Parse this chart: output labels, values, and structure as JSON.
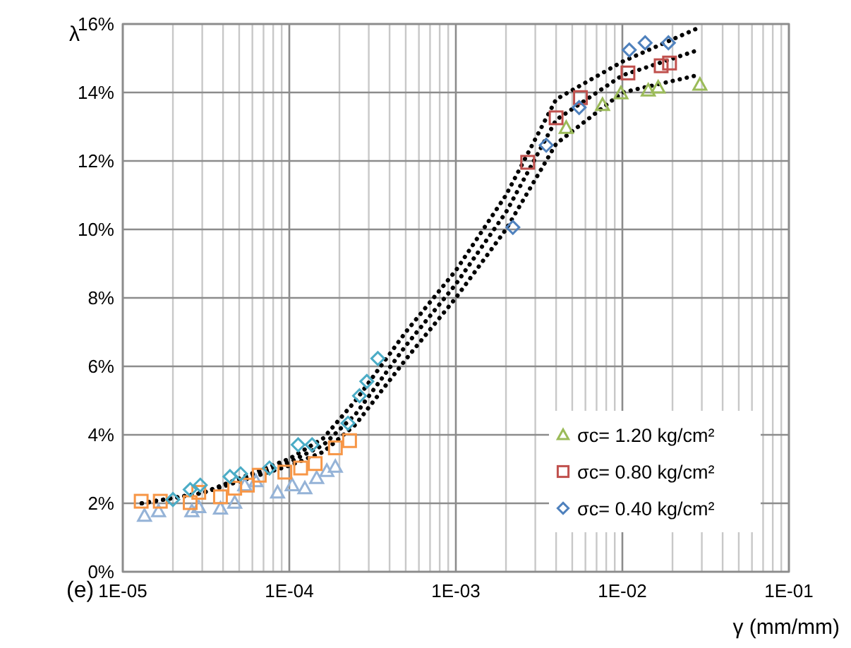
{
  "chart_data": {
    "type": "scatter",
    "ylabel": "λ",
    "xlabel": "γ (mm/mm)",
    "annotations": [
      "(e)"
    ],
    "log": "x",
    "grid": true,
    "legend": "bottom right",
    "xlim": [
      1e-05,
      0.1
    ],
    "xticks": [
      {
        "value": 1e-05,
        "label": "1E-05"
      },
      {
        "value": 0.0001,
        "label": "1E-04"
      },
      {
        "value": 0.001,
        "label": "1E-03"
      },
      {
        "value": 0.01,
        "label": "1E-02"
      },
      {
        "value": 0.1,
        "label": "1E-01"
      }
    ],
    "ylim": [
      0,
      16
    ],
    "yticks": [
      {
        "value": 0,
        "label": "0%"
      },
      {
        "value": 2,
        "label": "2%"
      },
      {
        "value": 4,
        "label": "4%"
      },
      {
        "value": 6,
        "label": "6%"
      },
      {
        "value": 8,
        "label": "8%"
      },
      {
        "value": 10,
        "label": "10%"
      },
      {
        "value": 12,
        "label": "12%"
      },
      {
        "value": 14,
        "label": "14%"
      },
      {
        "value": 16,
        "label": "16%"
      }
    ],
    "series": [
      {
        "type": "line",
        "line_style": "dotted",
        "marker": "none",
        "color": "#000000",
        "x": [
          1.3e-05,
          3e-05,
          0.0001,
          0.00016,
          0.00025,
          0.0005,
          0.001,
          0.002,
          0.004,
          0.01,
          0.029
        ],
        "values": [
          2.0,
          2.3,
          3.3,
          3.9,
          5.0,
          7.0,
          8.8,
          11.0,
          13.8,
          14.9,
          15.9
        ]
      },
      {
        "type": "line",
        "line_style": "dotted",
        "marker": "none",
        "color": "#000000",
        "x": [
          1.3e-05,
          3e-05,
          0.0001,
          0.00016,
          0.00025,
          0.0005,
          0.001,
          0.002,
          0.004,
          0.01,
          0.027
        ],
        "values": [
          2.0,
          2.3,
          3.2,
          3.7,
          4.6,
          6.6,
          8.4,
          10.5,
          13.2,
          14.5,
          15.2
        ]
      },
      {
        "type": "line",
        "line_style": "dotted",
        "marker": "none",
        "color": "#000000",
        "x": [
          1.3e-05,
          3e-05,
          0.0001,
          0.00016,
          0.00025,
          0.0005,
          0.001,
          0.002,
          0.004,
          0.01,
          0.028
        ],
        "values": [
          2.0,
          2.3,
          3.1,
          3.5,
          4.3,
          6.2,
          8.0,
          10.0,
          12.5,
          14.0,
          14.5
        ]
      },
      {
        "marker": "triangle",
        "color": "#95b3d7",
        "x": [
          1.35e-05,
          1.64e-05,
          2.6e-05,
          2.86e-05,
          3.86e-05,
          4.7e-05,
          5.4e-05,
          6.3e-05,
          8.5e-05,
          0.000104,
          0.000124,
          0.000146,
          0.000168,
          0.000189
        ],
        "values": [
          1.64,
          1.77,
          1.77,
          1.89,
          1.85,
          2.02,
          2.53,
          2.65,
          2.32,
          2.53,
          2.44,
          2.74,
          2.95,
          3.07
        ]
      },
      {
        "marker": "square",
        "color": "#f79646",
        "x": [
          1.29e-05,
          1.68e-05,
          2.54e-05,
          2.86e-05,
          3.86e-05,
          4.7e-05,
          5.6e-05,
          6.6e-05,
          9.4e-05,
          0.000117,
          0.000143,
          0.000189,
          0.00023
        ],
        "values": [
          2.06,
          2.06,
          2.02,
          2.32,
          2.19,
          2.44,
          2.53,
          2.82,
          2.91,
          3.03,
          3.16,
          3.62,
          3.83
        ]
      },
      {
        "marker": "diamond",
        "color": "#4bacc6",
        "x": [
          2e-05,
          2.54e-05,
          2.92e-05,
          4.4e-05,
          5.1e-05,
          7.6e-05,
          0.000113,
          0.000137,
          0.000225,
          0.000264,
          0.000292,
          0.00034
        ],
        "values": [
          2.11,
          2.4,
          2.53,
          2.78,
          2.86,
          3.03,
          3.71,
          3.71,
          4.34,
          5.14,
          5.56,
          6.23
        ]
      },
      {
        "name": "σc= 1.20 kg/cm²",
        "marker": "triangle",
        "color": "#9bbb59",
        "x": [
          0.0046,
          0.0076,
          0.0098,
          0.0143,
          0.0164,
          0.0292
        ],
        "values": [
          12.97,
          13.64,
          13.98,
          14.06,
          14.15,
          14.23
        ]
      },
      {
        "name": "σc= 0.80 kg/cm²",
        "marker": "square",
        "color": "#c0504d",
        "x": [
          0.0027,
          0.004,
          0.0056,
          0.0108,
          0.0171,
          0.0192
        ],
        "values": [
          11.96,
          13.26,
          13.85,
          14.57,
          14.78,
          14.86
        ]
      },
      {
        "name": "σc= 0.40 kg/cm²",
        "marker": "diamond",
        "color": "#4f81bd",
        "x": [
          0.0022,
          0.00349,
          0.0055,
          0.011,
          0.0137,
          0.0189
        ],
        "values": [
          10.06,
          12.46,
          13.56,
          15.24,
          15.45,
          15.45
        ]
      }
    ]
  }
}
